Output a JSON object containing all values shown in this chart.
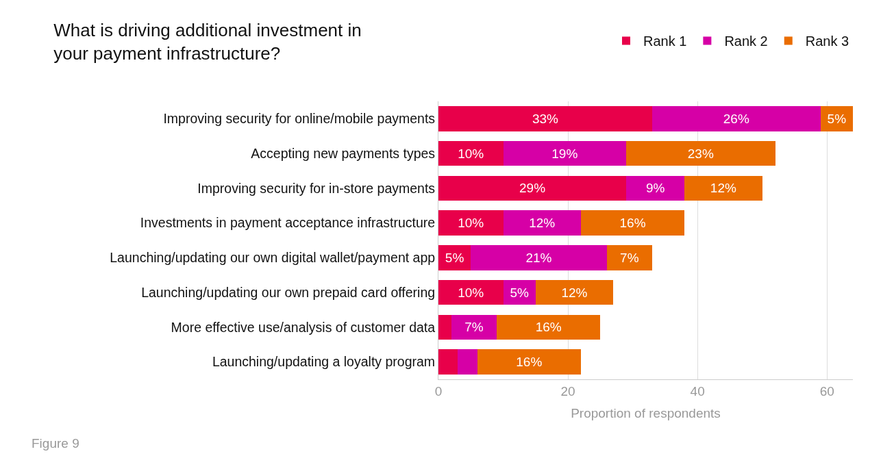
{
  "chart_data": {
    "type": "bar",
    "orientation": "horizontal",
    "stacked": true,
    "title": "What is driving additional investment in\nyour payment infrastructure?",
    "xlabel": "Proportion of respondents",
    "annotations": [
      "Figure 9"
    ],
    "categories": [
      "Improving security for online/mobile payments",
      "Accepting new payments types",
      "Improving security for in-store payments",
      "Investments in payment acceptance infrastructure",
      "Launching/updating our own digital wallet/payment app",
      "Launching/updating our own prepaid card offering",
      "More effective use/analysis of customer data",
      "Launching/updating a loyalty program"
    ],
    "series": [
      {
        "name": "Rank 1",
        "color": "#e8004a",
        "values": [
          33,
          10,
          29,
          10,
          5,
          10,
          2,
          3
        ],
        "value_labels": [
          "33%",
          "10%",
          "29%",
          "10%",
          "5%",
          "10%",
          null,
          null
        ]
      },
      {
        "name": "Rank 2",
        "color": "#d600a6",
        "values": [
          26,
          19,
          9,
          12,
          21,
          5,
          7,
          3
        ],
        "value_labels": [
          "26%",
          "19%",
          "9%",
          "12%",
          "21%",
          "5%",
          "7%",
          null
        ]
      },
      {
        "name": "Rank 3",
        "color": "#ea6d00",
        "values": [
          5,
          23,
          12,
          16,
          7,
          12,
          16,
          16
        ],
        "value_labels": [
          "5%",
          "23%",
          "12%",
          "16%",
          "7%",
          "12%",
          "16%",
          "16%"
        ]
      }
    ],
    "xlim": [
      0,
      64
    ],
    "xticks": [
      0,
      20,
      40,
      60
    ],
    "grid": "x",
    "legend": "top right"
  }
}
